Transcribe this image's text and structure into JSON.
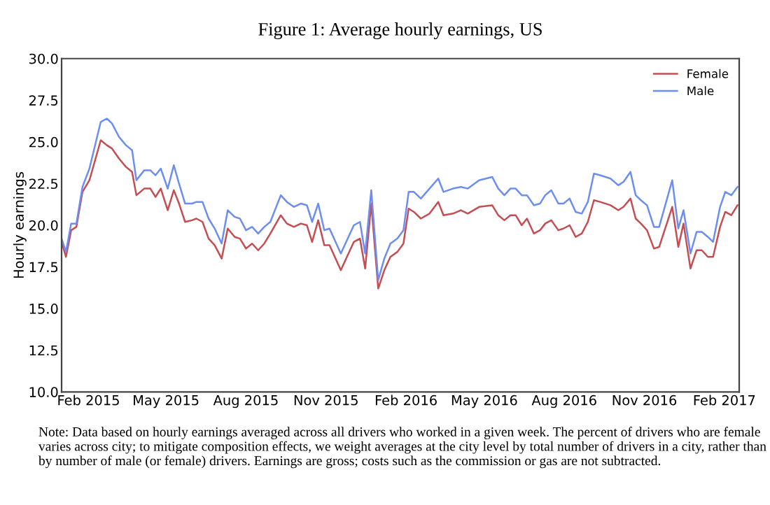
{
  "chart_data": {
    "type": "line",
    "title": "Figure 1: Average hourly earnings, US",
    "ylabel": "Hourly earnings",
    "x": [
      "2015-01-01",
      "2015-01-06",
      "2015-01-12",
      "2015-01-18",
      "2015-01-25",
      "2015-02-02",
      "2015-02-15",
      "2015-02-22",
      "2015-02-28",
      "2015-03-08",
      "2015-03-16",
      "2015-03-23",
      "2015-03-28",
      "2015-04-06",
      "2015-04-13",
      "2015-04-19",
      "2015-04-25",
      "2015-05-03",
      "2015-05-10",
      "2015-05-16",
      "2015-05-23",
      "2015-05-31",
      "2015-06-05",
      "2015-06-12",
      "2015-06-19",
      "2015-06-26",
      "2015-07-04",
      "2015-07-11",
      "2015-07-19",
      "2015-07-25",
      "2015-08-01",
      "2015-08-08",
      "2015-08-15",
      "2015-08-22",
      "2015-08-29",
      "2015-09-10",
      "2015-09-17",
      "2015-09-25",
      "2015-10-03",
      "2015-10-10",
      "2015-10-16",
      "2015-10-23",
      "2015-10-30",
      "2015-11-05",
      "2015-11-18",
      "2015-12-03",
      "2015-12-10",
      "2015-12-16",
      "2015-12-23",
      "2015-12-31",
      "2016-01-07",
      "2016-01-14",
      "2016-01-22",
      "2016-01-29",
      "2016-02-04",
      "2016-02-10",
      "2016-02-18",
      "2016-02-28",
      "2016-03-09",
      "2016-03-15",
      "2016-03-26",
      "2016-04-04",
      "2016-04-12",
      "2016-04-25",
      "2016-05-10",
      "2016-05-17",
      "2016-05-24",
      "2016-05-31",
      "2016-06-06",
      "2016-06-13",
      "2016-06-19",
      "2016-06-27",
      "2016-07-04",
      "2016-07-10",
      "2016-07-17",
      "2016-07-25",
      "2016-07-31",
      "2016-08-07",
      "2016-08-14",
      "2016-08-21",
      "2016-08-28",
      "2016-09-04",
      "2016-09-11",
      "2016-09-23",
      "2016-10-02",
      "2016-10-08",
      "2016-10-16",
      "2016-10-22",
      "2016-10-28",
      "2016-11-04",
      "2016-11-12",
      "2016-11-18",
      "2016-12-03",
      "2016-12-10",
      "2016-12-16",
      "2016-12-24",
      "2016-12-31",
      "2017-01-06",
      "2017-01-13",
      "2017-01-19",
      "2017-01-27",
      "2017-02-02",
      "2017-02-09",
      "2017-02-16"
    ],
    "series": [
      {
        "name": "Female",
        "color": "#c44e52",
        "values": [
          19.0,
          18.1,
          19.7,
          19.9,
          22.0,
          22.7,
          25.1,
          24.8,
          24.6,
          24.0,
          23.5,
          23.2,
          21.8,
          22.2,
          22.2,
          21.7,
          22.2,
          20.9,
          22.1,
          21.3,
          20.2,
          20.3,
          20.4,
          20.2,
          19.2,
          18.8,
          18.0,
          19.8,
          19.3,
          19.2,
          18.6,
          18.9,
          18.5,
          18.9,
          19.5,
          20.6,
          20.1,
          19.9,
          20.1,
          20.0,
          19.0,
          20.3,
          18.8,
          18.8,
          17.3,
          19.0,
          19.2,
          17.4,
          21.3,
          16.2,
          17.3,
          18.1,
          18.4,
          18.9,
          21.0,
          20.8,
          20.4,
          20.7,
          21.4,
          20.6,
          20.7,
          20.9,
          20.7,
          21.1,
          21.2,
          20.6,
          20.3,
          20.6,
          20.6,
          20.0,
          20.4,
          19.5,
          19.7,
          20.1,
          20.3,
          19.7,
          19.8,
          20.0,
          19.3,
          19.5,
          20.2,
          21.5,
          21.4,
          21.2,
          20.9,
          21.1,
          21.6,
          20.4,
          20.1,
          19.7,
          18.6,
          18.7,
          21.1,
          18.7,
          20.1,
          17.4,
          18.5,
          18.5,
          18.1,
          18.1,
          19.9,
          20.8,
          20.6,
          21.2
        ]
      },
      {
        "name": "Male",
        "color": "#6d8ef0",
        "values": [
          19.2,
          18.4,
          20.1,
          20.1,
          22.3,
          23.4,
          26.2,
          26.4,
          26.1,
          25.3,
          24.8,
          24.5,
          22.7,
          23.3,
          23.3,
          23.0,
          23.4,
          22.2,
          23.6,
          22.5,
          21.3,
          21.3,
          21.4,
          21.4,
          20.4,
          19.8,
          18.9,
          20.9,
          20.5,
          20.4,
          19.7,
          19.9,
          19.5,
          19.9,
          20.2,
          21.8,
          21.4,
          21.1,
          21.3,
          21.2,
          20.2,
          21.3,
          19.7,
          19.8,
          18.3,
          20.0,
          20.2,
          18.3,
          22.1,
          16.7,
          18.0,
          18.9,
          19.2,
          19.7,
          22.0,
          22.0,
          21.6,
          22.2,
          22.8,
          22.0,
          22.2,
          22.3,
          22.2,
          22.7,
          22.9,
          22.2,
          21.8,
          22.2,
          22.2,
          21.8,
          21.8,
          21.2,
          21.3,
          21.8,
          22.1,
          21.3,
          21.3,
          21.6,
          20.8,
          20.7,
          21.4,
          23.1,
          23.0,
          22.8,
          22.4,
          22.6,
          23.2,
          21.8,
          21.5,
          21.2,
          19.9,
          19.9,
          22.7,
          19.8,
          20.9,
          18.3,
          19.6,
          19.6,
          19.3,
          19.0,
          21.1,
          22.0,
          21.8,
          22.3
        ]
      }
    ],
    "xlim": [
      "2015-01-01",
      "2017-02-18"
    ],
    "xticks": [
      {
        "value": "2015-02-01",
        "label": "Feb 2015"
      },
      {
        "value": "2015-05-01",
        "label": "May 2015"
      },
      {
        "value": "2015-08-01",
        "label": "Aug 2015"
      },
      {
        "value": "2015-11-01",
        "label": "Nov 2015"
      },
      {
        "value": "2016-02-01",
        "label": "Feb 2016"
      },
      {
        "value": "2016-05-01",
        "label": "May 2016"
      },
      {
        "value": "2016-08-01",
        "label": "Aug 2016"
      },
      {
        "value": "2016-11-01",
        "label": "Nov 2016"
      },
      {
        "value": "2017-02-01",
        "label": "Feb 2017"
      }
    ],
    "ylim": [
      10,
      30
    ],
    "yticks": [
      {
        "value": 10,
        "label": "10.0"
      },
      {
        "value": 12.5,
        "label": "12.5"
      },
      {
        "value": 15,
        "label": "15.0"
      },
      {
        "value": 17.5,
        "label": "17.5"
      },
      {
        "value": 20,
        "label": "20.0"
      },
      {
        "value": 22.5,
        "label": "22.5"
      },
      {
        "value": 25,
        "label": "25.0"
      },
      {
        "value": 27.5,
        "label": "27.5"
      },
      {
        "value": 30,
        "label": "30.0"
      }
    ],
    "grid": false,
    "legend": "top right",
    "marker": "none",
    "line_style": "solid",
    "annotations": [
      "Note: Data based on hourly earnings averaged across all drivers who worked in a given week. The percent of drivers who are female varies across city; to mitigate composition effects, we weight averages at the city level by total number of drivers in a city, rather than by number of male (or female) drivers. Earnings are gross; costs such as the commission or gas are not subtracted."
    ]
  }
}
